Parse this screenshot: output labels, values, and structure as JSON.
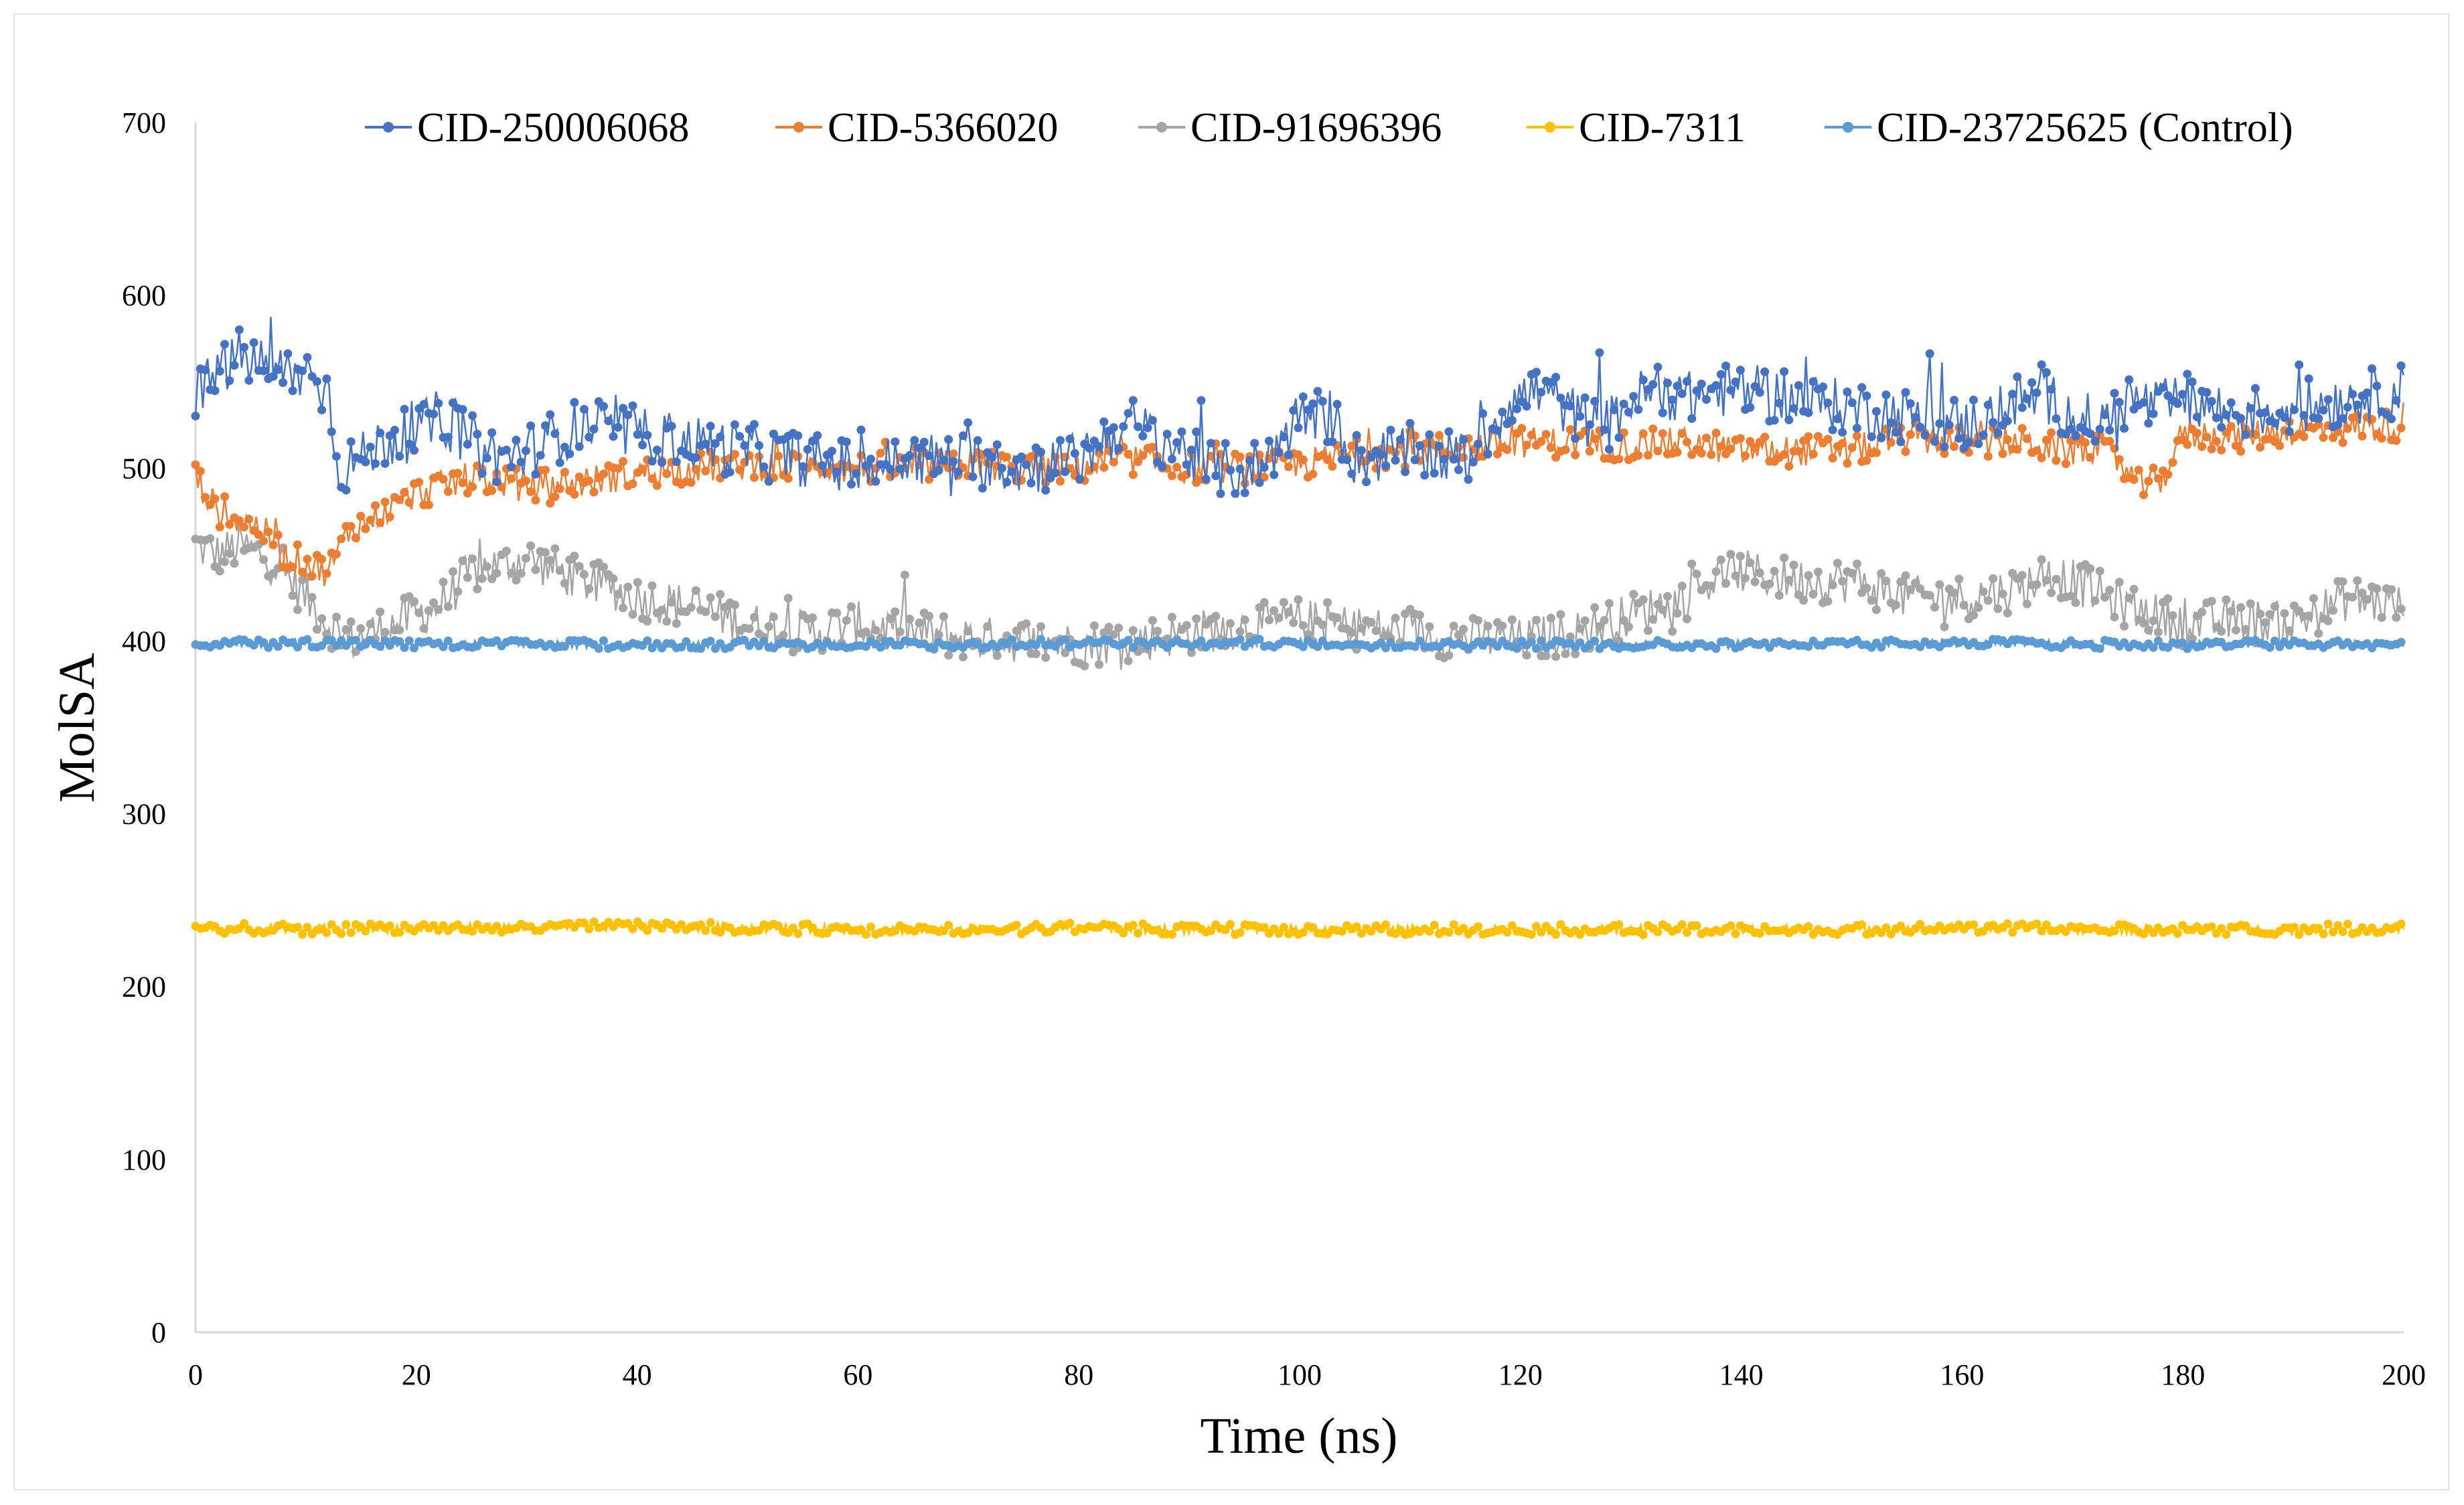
{
  "chart_data": {
    "type": "line",
    "title": "",
    "xlabel": "Time (ns)",
    "ylabel": "MolSA",
    "xlim": [
      0,
      200
    ],
    "ylim": [
      0,
      700
    ],
    "xticks": [
      "0",
      "20",
      "40",
      "60",
      "80",
      "100",
      "120",
      "140",
      "160",
      "180",
      "200"
    ],
    "yticks": [
      "0",
      "100",
      "200",
      "300",
      "400",
      "500",
      "600",
      "700"
    ],
    "grid": false,
    "legend_position": "top",
    "series": [
      {
        "name": "CID-250006068",
        "color": "#4472C4",
        "x": [
          0,
          2,
          4,
          6,
          8,
          10,
          12,
          13,
          15,
          17,
          20,
          22,
          25,
          28,
          30,
          35,
          40,
          45,
          50,
          55,
          60,
          65,
          70,
          75,
          80,
          83,
          85,
          88,
          92,
          95,
          97,
          100,
          103,
          105,
          110,
          115,
          117,
          119,
          122,
          125,
          128,
          130,
          133,
          135,
          138,
          140,
          145,
          150,
          155,
          160,
          163,
          165,
          168,
          170,
          173,
          175,
          178,
          180,
          185,
          190,
          195,
          200
        ],
        "values": [
          540,
          555,
          565,
          560,
          555,
          555,
          545,
          500,
          505,
          515,
          520,
          530,
          515,
          505,
          510,
          525,
          520,
          515,
          510,
          505,
          500,
          505,
          505,
          500,
          505,
          520,
          525,
          515,
          500,
          497,
          505,
          530,
          530,
          505,
          510,
          505,
          520,
          540,
          545,
          530,
          525,
          540,
          545,
          540,
          545,
          545,
          540,
          535,
          530,
          525,
          530,
          540,
          540,
          530,
          525,
          540,
          535,
          540,
          530,
          535,
          540,
          545
        ]
      },
      {
        "name": "CID-5366020",
        "color": "#ED7D31",
        "x": [
          0,
          2,
          4,
          6,
          8,
          10,
          12,
          14,
          16,
          18,
          20,
          25,
          30,
          35,
          40,
          45,
          50,
          55,
          60,
          65,
          70,
          75,
          80,
          85,
          90,
          95,
          100,
          105,
          110,
          115,
          120,
          125,
          130,
          135,
          140,
          145,
          150,
          155,
          160,
          165,
          170,
          172,
          174,
          176,
          178,
          180,
          185,
          190,
          195,
          200
        ],
        "values": [
          495,
          475,
          470,
          465,
          450,
          445,
          440,
          465,
          470,
          478,
          485,
          495,
          490,
          492,
          497,
          500,
          502,
          500,
          500,
          500,
          503,
          500,
          500,
          505,
          500,
          500,
          502,
          508,
          510,
          512,
          515,
          515,
          513,
          515,
          510,
          510,
          510,
          518,
          515,
          515,
          510,
          512,
          505,
          490,
          492,
          520,
          518,
          522,
          523,
          525
        ]
      },
      {
        "name": "CID-91696396",
        "color": "#A5A5A5",
        "x": [
          0,
          2,
          4,
          6,
          8,
          10,
          12,
          14,
          16,
          18,
          20,
          22,
          25,
          28,
          30,
          33,
          35,
          38,
          40,
          45,
          50,
          55,
          60,
          65,
          70,
          75,
          80,
          85,
          90,
          95,
          100,
          105,
          110,
          115,
          120,
          125,
          130,
          135,
          138,
          140,
          145,
          150,
          155,
          160,
          165,
          168,
          170,
          175,
          180,
          185,
          190,
          195,
          200
        ],
        "values": [
          455,
          450,
          455,
          450,
          440,
          425,
          410,
          400,
          405,
          410,
          415,
          420,
          440,
          445,
          448,
          440,
          435,
          430,
          425,
          420,
          410,
          405,
          410,
          405,
          402,
          400,
          398,
          400,
          405,
          408,
          412,
          408,
          405,
          402,
          400,
          405,
          415,
          425,
          438,
          440,
          435,
          435,
          425,
          425,
          430,
          440,
          435,
          420,
          410,
          412,
          410,
          425,
          420
        ]
      },
      {
        "name": "CID-7311",
        "color": "#FFC000",
        "x": [
          0,
          10,
          20,
          30,
          40,
          50,
          60,
          70,
          80,
          90,
          100,
          110,
          120,
          130,
          140,
          150,
          160,
          170,
          180,
          190,
          200
        ],
        "values": [
          234,
          233,
          234,
          234,
          235,
          234,
          233,
          233,
          234,
          233,
          233,
          233,
          233,
          233,
          233,
          233,
          234,
          233,
          233,
          233,
          234
        ]
      },
      {
        "name": "CID-23725625 (Control)",
        "color": "#5B9BD5",
        "x": [
          0,
          10,
          20,
          30,
          40,
          50,
          60,
          70,
          80,
          90,
          100,
          110,
          120,
          130,
          140,
          150,
          160,
          170,
          180,
          190,
          200
        ],
        "values": [
          398,
          399,
          398,
          398,
          398,
          398,
          398,
          398,
          399,
          398,
          399,
          398,
          398,
          398,
          398,
          398,
          399,
          398,
          398,
          398,
          398
        ]
      }
    ]
  }
}
